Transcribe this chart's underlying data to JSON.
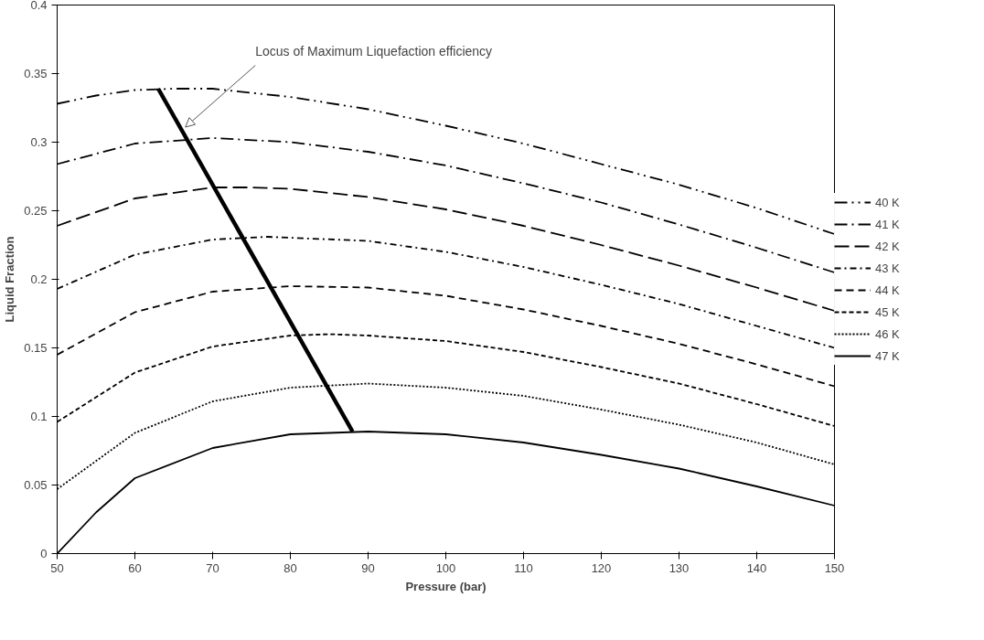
{
  "chart_data": {
    "type": "line",
    "xlabel": "Pressure (bar)",
    "ylabel": "Liquid Fraction",
    "xlim": [
      50,
      150
    ],
    "ylim": [
      0,
      0.4
    ],
    "xticks": [
      50,
      60,
      70,
      80,
      90,
      100,
      110,
      120,
      130,
      140,
      150
    ],
    "yticks": [
      0,
      0.05,
      0.1,
      0.15,
      0.2,
      0.25,
      0.3,
      0.35,
      0.4
    ],
    "grid": false,
    "legend": "right",
    "marker": "none",
    "annotations": [
      {
        "text": "Locus of Maximum  Liquefaction efficiency",
        "x": 66.5,
        "y": 0.311
      }
    ],
    "series": [
      {
        "name": "40 K",
        "color": "#000000",
        "line_style": "long-dash-dot-dot",
        "x": [
          50,
          55,
          60,
          65,
          70,
          80,
          90,
          100,
          110,
          120,
          130,
          140,
          150
        ],
        "values": [
          0.328,
          0.334,
          0.338,
          0.339,
          0.339,
          0.333,
          0.324,
          0.312,
          0.299,
          0.284,
          0.269,
          0.252,
          0.233
        ]
      },
      {
        "name": "41 K",
        "color": "#000000",
        "line_style": "long-dash-dot",
        "x": [
          50,
          60,
          70,
          80,
          90,
          100,
          110,
          120,
          130,
          140,
          150
        ],
        "values": [
          0.284,
          0.299,
          0.303,
          0.3,
          0.293,
          0.283,
          0.27,
          0.256,
          0.24,
          0.223,
          0.205
        ]
      },
      {
        "name": "42 K",
        "color": "#000000",
        "line_style": "long-dash",
        "x": [
          50,
          60,
          70,
          75,
          80,
          90,
          100,
          110,
          120,
          130,
          140,
          150
        ],
        "values": [
          0.239,
          0.259,
          0.267,
          0.267,
          0.266,
          0.26,
          0.251,
          0.239,
          0.225,
          0.21,
          0.194,
          0.177
        ]
      },
      {
        "name": "43 K",
        "color": "#000000",
        "line_style": "dash-dot",
        "x": [
          50,
          60,
          70,
          77,
          90,
          100,
          110,
          120,
          130,
          140,
          150
        ],
        "values": [
          0.193,
          0.218,
          0.229,
          0.231,
          0.228,
          0.22,
          0.209,
          0.196,
          0.182,
          0.166,
          0.15
        ]
      },
      {
        "name": "44 K",
        "color": "#000000",
        "line_style": "dash",
        "x": [
          50,
          60,
          70,
          80,
          90,
          100,
          110,
          120,
          130,
          140,
          150
        ],
        "values": [
          0.145,
          0.176,
          0.191,
          0.195,
          0.194,
          0.188,
          0.178,
          0.166,
          0.153,
          0.138,
          0.122
        ]
      },
      {
        "name": "45 K",
        "color": "#000000",
        "line_style": "short-dash",
        "x": [
          50,
          60,
          70,
          80,
          85,
          90,
          100,
          110,
          120,
          130,
          140,
          150
        ],
        "values": [
          0.096,
          0.132,
          0.151,
          0.159,
          0.16,
          0.159,
          0.155,
          0.147,
          0.136,
          0.124,
          0.109,
          0.093
        ]
      },
      {
        "name": "46 K",
        "color": "#000000",
        "line_style": "dotted",
        "x": [
          50,
          60,
          70,
          80,
          90,
          100,
          110,
          120,
          130,
          140,
          150
        ],
        "values": [
          0.047,
          0.088,
          0.111,
          0.121,
          0.124,
          0.121,
          0.115,
          0.105,
          0.094,
          0.081,
          0.065
        ]
      },
      {
        "name": "47 K",
        "color": "#000000",
        "line_style": "solid",
        "x": [
          50,
          55,
          60,
          70,
          80,
          90,
          100,
          110,
          120,
          130,
          140,
          150
        ],
        "values": [
          0.0,
          0.03,
          0.055,
          0.077,
          0.087,
          0.089,
          0.087,
          0.081,
          0.072,
          0.062,
          0.049,
          0.035
        ]
      },
      {
        "color": "#000000",
        "line_style": "solid",
        "x": [
          63,
          88
        ],
        "values": [
          0.339,
          0.089
        ]
      }
    ]
  }
}
